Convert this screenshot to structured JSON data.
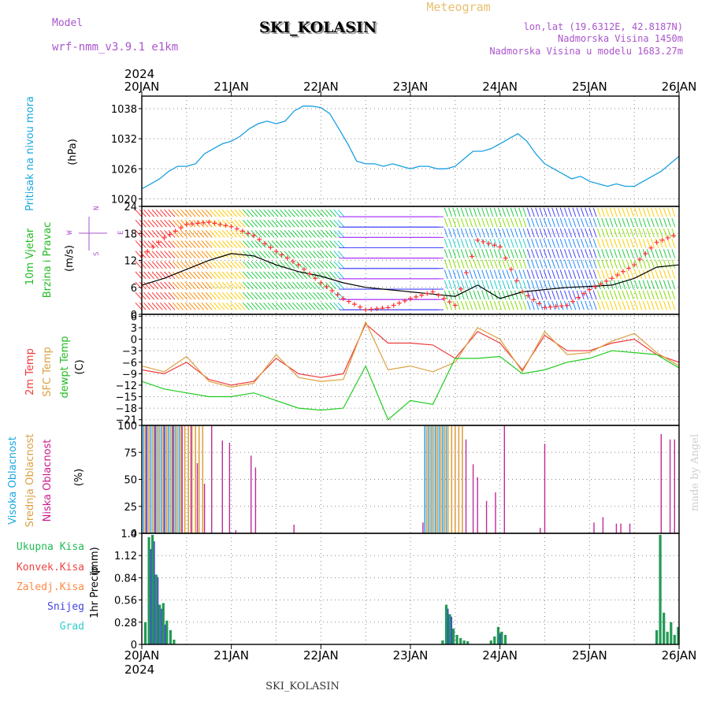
{
  "header": {
    "model_label": "Model",
    "model_name": "wrf-nmm_v3.9.1  e1km",
    "station_title": "SKI_KOLASIN",
    "meteogram_label": "Meteogram",
    "lonlat": "lon,lat (19.6312E, 42.8187N)",
    "elevation": "Nadmorska Visina 1450m",
    "model_elevation": "Nadmorska Visina u modelu 1683.27m",
    "footer_station": "SKI_KOLASIN",
    "credit": "made by Angel"
  },
  "time_axis": {
    "year_label": "2024",
    "ticks": [
      "20JAN",
      "21JAN",
      "22JAN",
      "23JAN",
      "24JAN",
      "25JAN",
      "26JAN"
    ]
  },
  "colors": {
    "pressure": "#1a9fe0",
    "temp2m": "#ee3a3a",
    "sfc_temp": "#dca040",
    "dewpt": "#22cc22",
    "wind_speed": "#000000",
    "wind_dir": "#ff3333",
    "cloud_high": "#33aaee",
    "cloud_mid": "#e0a040",
    "cloud_low": "#c02a9a",
    "precip_total": "#229955",
    "precip_conv": "#ee4444",
    "precip_frozen": "#ff8844",
    "precip_snow": "#4444dd",
    "precip_graupel": "#33cccc"
  },
  "chart_data": [
    {
      "type": "line",
      "panel": "pressure",
      "ylabel_main": "Pritisak na nivou mora",
      "ylabel_unit": "(hPa)",
      "yticks": [
        "1038",
        "1032",
        "1026",
        "1020"
      ],
      "ylim": [
        1018.5,
        1040.5
      ],
      "xlim_days": [
        0,
        6
      ],
      "series": [
        {
          "x": [
            0,
            0.1,
            0.2,
            0.3,
            0.4,
            0.5,
            0.6,
            0.7,
            0.8,
            0.9,
            1.0,
            1.1,
            1.2,
            1.3,
            1.4,
            1.5,
            1.6,
            1.7,
            1.8,
            1.9,
            2.0,
            2.1,
            2.2,
            2.3,
            2.4,
            2.5,
            2.6,
            2.7,
            2.8,
            2.9,
            3.0,
            3.1,
            3.2,
            3.3,
            3.4,
            3.5,
            3.6,
            3.7,
            3.8,
            3.9,
            4.0,
            4.1,
            4.2,
            4.3,
            4.4,
            4.5,
            4.6,
            4.7,
            4.8,
            4.9,
            5.0,
            5.1,
            5.2,
            5.3,
            5.4,
            5.5,
            5.6,
            5.7,
            5.8,
            5.9,
            6.0
          ],
          "y": [
            1022,
            1023,
            1024,
            1025.5,
            1026.5,
            1026.5,
            1027,
            1029,
            1030,
            1031,
            1031.5,
            1032.5,
            1034,
            1035,
            1035.5,
            1035,
            1035.5,
            1037.5,
            1038.5,
            1038.5,
            1038.2,
            1037,
            1034,
            1031,
            1027.5,
            1027,
            1027,
            1026.5,
            1027,
            1026.5,
            1026,
            1026.5,
            1026.5,
            1026,
            1026,
            1026.5,
            1028,
            1029.5,
            1029.5,
            1030,
            1031,
            1032,
            1033,
            1031.5,
            1029,
            1027,
            1026,
            1025,
            1024,
            1024.5,
            1023.5,
            1023,
            1022.5,
            1023,
            1022.5,
            1022.5,
            1023.5,
            1024.5,
            1025.5,
            1027,
            1028.5
          ]
        }
      ]
    },
    {
      "type": "line",
      "panel": "wind",
      "ylabel_main": "10m Vjetar",
      "ylabel_sub": "Brzina i Pravac",
      "ylabel_unit": "(m/s)",
      "compass_labels": [
        "N",
        "S",
        "W",
        "E"
      ],
      "yticks": [
        "24",
        "18",
        "12",
        "6",
        "0"
      ],
      "ylim": [
        0,
        24
      ],
      "xlim_days": [
        0,
        6
      ],
      "series": [
        {
          "x": [
            0,
            0.25,
            0.5,
            0.75,
            1.0,
            1.25,
            1.5,
            1.75,
            2.0,
            2.25,
            2.5,
            2.75,
            3.0,
            3.25,
            3.5,
            3.75,
            4.0,
            4.25,
            4.5,
            4.75,
            5.0,
            5.25,
            5.5,
            5.75,
            6.0
          ],
          "y": [
            6.5,
            8,
            10,
            12,
            13.5,
            13,
            11,
            9.5,
            8.5,
            7,
            6,
            5.5,
            5,
            4.5,
            4,
            6.5,
            3.5,
            5,
            5.5,
            6,
            6.2,
            6.5,
            8,
            10.5,
            11
          ]
        },
        {
          "x": [
            0,
            0.25,
            0.5,
            0.75,
            1.0,
            1.25,
            1.5,
            1.75,
            2.0,
            2.25,
            2.5,
            2.75,
            3.0,
            3.25,
            3.5,
            3.75,
            4.0,
            4.25,
            4.5,
            4.75,
            5.0,
            5.25,
            5.5,
            5.75,
            6.0
          ],
          "y": [
            13,
            17,
            20,
            20.5,
            19.5,
            17.5,
            14,
            11,
            7,
            3.5,
            1,
            1.5,
            3.5,
            5,
            2,
            16.5,
            15,
            5,
            1.5,
            2,
            5.5,
            8,
            11,
            16,
            18
          ]
        }
      ]
    },
    {
      "type": "line",
      "panel": "temperature",
      "ylabel_lines": [
        "2m Temp",
        "SFC Temp",
        "dewpt Temp"
      ],
      "ylabel_unit": "(C)",
      "yticks": [
        "6",
        "3",
        "0",
        "−3",
        "−6",
        "−9",
        "−12",
        "−15",
        "−18",
        "−21"
      ],
      "ylim": [
        -22.5,
        6.5
      ],
      "xlim_days": [
        0,
        6
      ],
      "series": [
        {
          "name": "2m Temp",
          "x": [
            0,
            0.25,
            0.5,
            0.75,
            1.0,
            1.25,
            1.5,
            1.75,
            2.0,
            2.25,
            2.5,
            2.75,
            3.0,
            3.25,
            3.5,
            3.75,
            4.0,
            4.25,
            4.5,
            4.75,
            5.0,
            5.25,
            5.5,
            5.75,
            6.0
          ],
          "y": [
            -8,
            -9,
            -6,
            -10.5,
            -12,
            -11,
            -5,
            -9,
            -10,
            -9,
            4,
            -1,
            -1,
            -1.5,
            -5,
            2,
            -1,
            -8,
            1,
            -3,
            -3,
            -1,
            0,
            -4,
            -6
          ]
        },
        {
          "name": "SFC Temp",
          "x": [
            0,
            0.25,
            0.5,
            0.75,
            1.0,
            1.25,
            1.5,
            1.75,
            2.0,
            2.25,
            2.5,
            2.75,
            3.0,
            3.25,
            3.5,
            3.75,
            4.0,
            4.25,
            4.5,
            4.75,
            5.0,
            5.25,
            5.5,
            5.75,
            6.0
          ],
          "y": [
            -7,
            -8.5,
            -4.5,
            -11,
            -12.5,
            -11.5,
            -4,
            -10,
            -11,
            -10.5,
            4.5,
            -8,
            -7,
            -8.5,
            -6,
            3,
            0,
            -8.5,
            2,
            -4,
            -3.5,
            -0.5,
            1.5,
            -3.5,
            -7
          ]
        },
        {
          "name": "dewpt Temp",
          "x": [
            0,
            0.25,
            0.5,
            0.75,
            1.0,
            1.25,
            1.5,
            1.75,
            2.0,
            2.25,
            2.5,
            2.75,
            3.0,
            3.25,
            3.5,
            3.75,
            4.0,
            4.25,
            4.5,
            4.75,
            5.0,
            5.25,
            5.5,
            5.75,
            6.0
          ],
          "y": [
            -11,
            -13,
            -14,
            -15,
            -15,
            -14,
            -16,
            -18,
            -18.5,
            -18,
            -7,
            -21,
            -16,
            -17,
            -5,
            -5,
            -4.5,
            -9,
            -8,
            -6,
            -5,
            -3,
            -3.5,
            -4,
            -7.5
          ]
        }
      ]
    },
    {
      "type": "bar",
      "panel": "clouds",
      "ylabel_lines": [
        "Visoka Oblacnost",
        "Srednja Oblacnost",
        "Niska Oblacnost"
      ],
      "ylabel_unit": "(%)",
      "yticks": [
        "100",
        "75",
        "50",
        "25",
        "0"
      ],
      "ylim": [
        0,
        100
      ],
      "xlim_days": [
        0,
        6
      ],
      "high": {
        "x": [
          0.02,
          0.06,
          0.1,
          0.14,
          0.18,
          0.22,
          0.26,
          0.3,
          0.34,
          0.38,
          0.42,
          3.16,
          3.2,
          3.24,
          3.28,
          3.32,
          3.36,
          3.4
        ],
        "y": [
          100,
          100,
          100,
          100,
          100,
          100,
          100,
          100,
          100,
          100,
          100,
          100,
          100,
          100,
          100,
          100,
          100,
          100
        ]
      },
      "mid": {
        "x": [
          0.04,
          0.08,
          0.12,
          0.16,
          0.2,
          0.24,
          0.28,
          0.32,
          0.36,
          0.4,
          0.44,
          0.48,
          0.52,
          0.56,
          0.6,
          0.64,
          0.68,
          3.18,
          3.22,
          3.26,
          3.3,
          3.34,
          3.38,
          3.42,
          3.46,
          3.5,
          3.54,
          3.58
        ],
        "y": [
          100,
          100,
          100,
          100,
          100,
          100,
          100,
          100,
          100,
          100,
          100,
          100,
          100,
          100,
          100,
          100,
          100,
          100,
          100,
          100,
          100,
          100,
          100,
          100,
          100,
          100,
          100,
          100
        ]
      },
      "low": {
        "x": [
          0.05,
          0.15,
          0.25,
          0.35,
          0.45,
          0.55,
          0.62,
          0.7,
          0.78,
          0.9,
          0.98,
          1.05,
          1.22,
          1.27,
          1.7,
          3.14,
          3.62,
          3.7,
          3.75,
          3.85,
          3.95,
          4.05,
          4.45,
          4.5,
          5.05,
          5.15,
          5.3,
          5.35,
          5.45,
          5.8,
          5.9,
          5.95
        ],
        "y": [
          100,
          100,
          100,
          100,
          100,
          100,
          65,
          46,
          100,
          86,
          84,
          3,
          72,
          61,
          8,
          10,
          87,
          64,
          52,
          30,
          38,
          100,
          5,
          83,
          10,
          15,
          9,
          9,
          9,
          92,
          87,
          87
        ]
      }
    },
    {
      "type": "bar",
      "panel": "precip",
      "legend": [
        "Ukupna  Kisa",
        "Konvek.Kisa",
        "Zaledj.Kisa",
        "Snijeg",
        "Grad"
      ],
      "ylabel_main": "1hr Precip",
      "ylabel_unit": "(mm)",
      "yticks": [
        "1.4",
        "1.12",
        "0.84",
        "0.56",
        "0.28",
        "0"
      ],
      "ylim": [
        0,
        1.4
      ],
      "xlim_days": [
        0,
        6
      ],
      "total": {
        "x": [
          0.04,
          0.08,
          0.12,
          0.16,
          0.2,
          0.24,
          0.28,
          0.32,
          0.36,
          3.36,
          3.4,
          3.44,
          3.48,
          3.52,
          3.56,
          3.6,
          3.64,
          3.9,
          3.94,
          3.98,
          4.02,
          4.06,
          5.75,
          5.79,
          5.83,
          5.87,
          5.91,
          5.95,
          5.99
        ],
        "y": [
          0.28,
          1.35,
          1.38,
          0.88,
          0.5,
          0.52,
          0.3,
          0.18,
          0.06,
          0.05,
          0.5,
          0.38,
          0.2,
          0.12,
          0.08,
          0.05,
          0.04,
          0.05,
          0.1,
          0.22,
          0.16,
          0.12,
          0.18,
          1.38,
          0.4,
          0.16,
          0.28,
          0.12,
          0.22
        ]
      },
      "snow": {
        "x": [
          0.1,
          0.14,
          0.18,
          0.22,
          0.26,
          3.42,
          3.46,
          4.0
        ],
        "y": [
          1.2,
          1.3,
          0.85,
          0.45,
          0.25,
          0.45,
          0.35,
          0.14
        ]
      }
    }
  ]
}
